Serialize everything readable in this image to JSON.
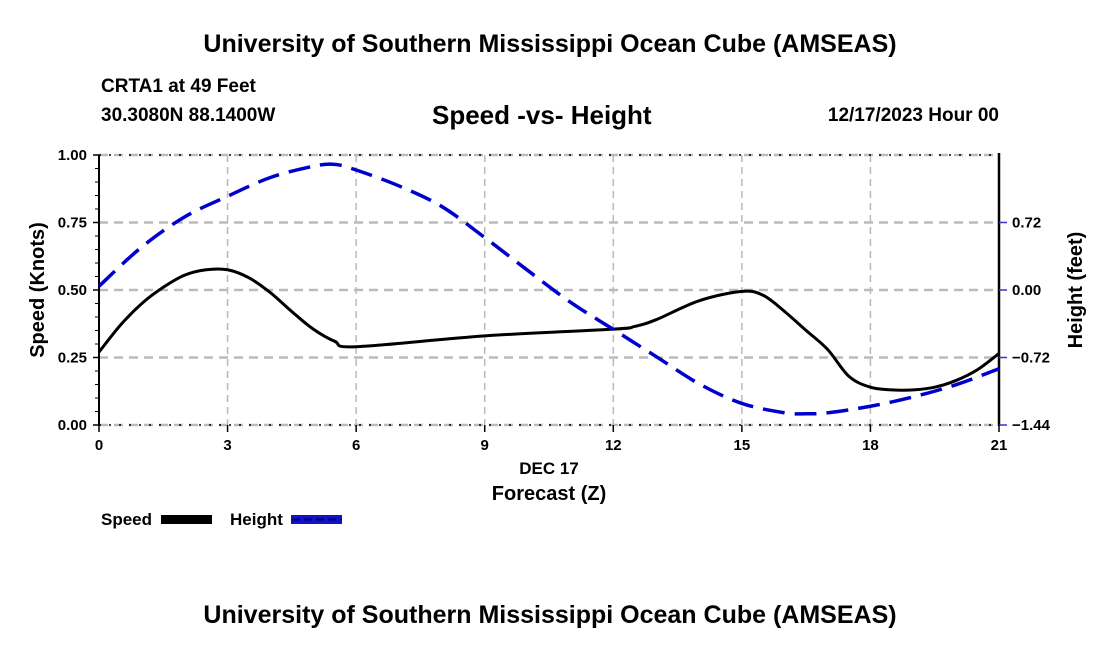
{
  "header": {
    "title": "University of Southern Mississippi Ocean Cube (AMSEAS)",
    "station": "CRTA1 at 49 Feet",
    "coords": "30.3080N  88.1400W",
    "date": "12/17/2023 Hour 00"
  },
  "footer": {
    "title": "University of Southern Mississippi Ocean Cube (AMSEAS)"
  },
  "legend": {
    "items": [
      {
        "label": "Speed",
        "color": "#000000",
        "style": "solid"
      },
      {
        "label": "Height",
        "color": "#0000cc",
        "style": "dashed"
      }
    ]
  },
  "chart_data": {
    "type": "line",
    "title": "Speed -vs- Height",
    "xlabel": "Forecast (Z)",
    "xsublabel": "DEC 17",
    "ylabel": "Speed (Knots)",
    "y2label": "Height (feet)",
    "xlim": [
      0,
      21
    ],
    "ylim": [
      0,
      1
    ],
    "y2lim": [
      -1.44,
      1.44
    ],
    "xticks": [
      0,
      3,
      6,
      9,
      12,
      15,
      18,
      21
    ],
    "xtick_labels": [
      "0",
      "3",
      "6",
      "9",
      "12",
      "15",
      "18",
      "21"
    ],
    "yticks": [
      0,
      0.25,
      0.5,
      0.75,
      1.0
    ],
    "ytick_labels": [
      "0.00",
      "0.25",
      "0.50",
      "0.75",
      "1.00"
    ],
    "y2ticks": [
      -1.44,
      -0.72,
      0.0,
      0.72
    ],
    "y2tick_labels": [
      "−1.44",
      "−0.72",
      "0.00",
      "0.72"
    ],
    "grid": true,
    "legend_position": "bottom-left",
    "colors": {
      "speed": "#000000",
      "height": "#0000cc",
      "grid": "#bbbbbb",
      "y2tick": "#3333cc"
    },
    "series": [
      {
        "name": "Speed",
        "axis": "left",
        "x": [
          0,
          0.5,
          1,
          1.5,
          2,
          2.5,
          3,
          3.5,
          4,
          4.5,
          5,
          5.5,
          6,
          9,
          12,
          12.5,
          13,
          14,
          15,
          15.5,
          16,
          16.5,
          17,
          17.5,
          18,
          18.5,
          19,
          19.5,
          20,
          20.5,
          21
        ],
        "values": [
          0.27,
          0.37,
          0.45,
          0.51,
          0.555,
          0.575,
          0.575,
          0.545,
          0.49,
          0.42,
          0.355,
          0.31,
          0.29,
          0.33,
          0.355,
          0.365,
          0.39,
          0.46,
          0.495,
          0.48,
          0.42,
          0.35,
          0.28,
          0.18,
          0.14,
          0.13,
          0.13,
          0.14,
          0.165,
          0.205,
          0.265
        ]
      },
      {
        "name": "Height",
        "axis": "right",
        "x": [
          0,
          1,
          2,
          3,
          4,
          5,
          5.5,
          6,
          7,
          8,
          9,
          10,
          11,
          12,
          13,
          14,
          15,
          16,
          16.5,
          17,
          18,
          19,
          20,
          21
        ],
        "values": [
          0.04,
          0.46,
          0.78,
          1.0,
          1.2,
          1.32,
          1.34,
          1.28,
          1.11,
          0.89,
          0.56,
          0.21,
          -0.13,
          -0.42,
          -0.71,
          -1.0,
          -1.21,
          -1.31,
          -1.32,
          -1.31,
          -1.24,
          -1.14,
          -1.01,
          -0.84
        ]
      }
    ]
  }
}
